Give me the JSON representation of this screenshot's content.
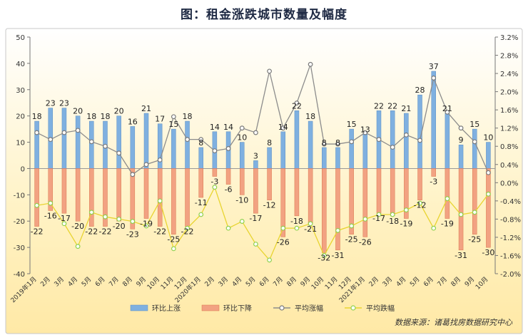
{
  "title": "图：租金涨跌城市数量及幅度",
  "source": "数据来源：诸葛找房数据研究中心",
  "colors": {
    "rise_bar": "#7fb0e0",
    "fall_bar": "#f2a282",
    "rise_line": "#8c8c8c",
    "fall_line": "#e8d430",
    "fall_marker": "#8fd14f"
  },
  "chart_data": {
    "type": "bar",
    "categories": [
      "2019年1月",
      "2月",
      "3月",
      "4月",
      "5月",
      "6月",
      "7月",
      "8月",
      "9月",
      "10月",
      "11月",
      "12月",
      "2020年1月",
      "2月",
      "3月",
      "4月",
      "5月",
      "6月",
      "7月",
      "8月",
      "9月",
      "10月",
      "11月",
      "12月",
      "2021年1月",
      "2月",
      "3月",
      "4月",
      "5月",
      "6月",
      "7月",
      "8月",
      "9月",
      "10月"
    ],
    "series": [
      {
        "name": "环比上涨",
        "axis": "left",
        "type": "bar",
        "values": [
          18,
          23,
          23,
          20,
          18,
          18,
          20,
          16,
          21,
          17,
          15,
          18,
          8,
          14,
          14,
          10,
          3,
          8,
          14,
          22,
          18,
          8,
          8,
          15,
          13,
          22,
          22,
          21,
          28,
          37,
          21,
          9,
          15,
          10
        ]
      },
      {
        "name": "环比下降",
        "axis": "left",
        "type": "bar",
        "values": [
          -22,
          -16,
          -17,
          -20,
          -22,
          -22,
          -20,
          -23,
          -19,
          -22,
          -25,
          -22,
          -11,
          -3,
          -6,
          -10,
          -17,
          -12,
          -26,
          -18,
          -21,
          -32,
          -31,
          -25,
          -26,
          -17,
          -18,
          -19,
          -12,
          -3,
          -19,
          -31,
          -25,
          -30
        ]
      },
      {
        "name": "平均涨幅",
        "axis": "right",
        "type": "line",
        "values": [
          1.1,
          0.95,
          1.1,
          1.15,
          0.9,
          0.8,
          0.65,
          0.18,
          0.4,
          0.5,
          1.45,
          0.95,
          0.95,
          0.7,
          0.75,
          1.2,
          1.1,
          2.45,
          1.2,
          1.75,
          2.6,
          0.85,
          0.85,
          0.9,
          1.1,
          0.95,
          0.78,
          1.05,
          0.93,
          2.3,
          1.55,
          1.2,
          0.9,
          0.22
        ]
      },
      {
        "name": "平均跌幅",
        "axis": "right",
        "type": "line",
        "values": [
          -0.5,
          -0.45,
          -0.9,
          -1.4,
          -0.65,
          -0.75,
          -0.8,
          -0.85,
          -0.95,
          -0.4,
          -1.45,
          -1.0,
          -0.7,
          -0.1,
          -1.0,
          -0.85,
          -1.35,
          -1.7,
          -1.0,
          -1.0,
          -0.9,
          -1.6,
          -1.05,
          -0.95,
          -0.8,
          -0.7,
          -0.7,
          -0.6,
          -0.45,
          -1.0,
          -0.35,
          -0.7,
          -0.65,
          -0.25
        ]
      }
    ],
    "data_labels_rise": [
      "18",
      "23",
      "23",
      "20",
      "18",
      "18",
      "20",
      "16",
      "21",
      "17",
      "15",
      "18",
      "8",
      "14",
      "14",
      "10",
      "3",
      "8",
      "14",
      "22",
      "18",
      "8",
      "8",
      "15",
      "13",
      "22",
      "22",
      "21",
      "28",
      "37",
      "21",
      "9",
      "15",
      "10"
    ],
    "data_labels_fall": [
      "-22",
      "-16",
      "-17",
      "-20",
      "-22",
      "-22",
      "-20",
      "-23",
      "-19",
      "-22",
      "-25",
      "-22",
      "-11",
      "-3",
      "-6",
      "-10",
      "-17",
      "-12",
      "-26",
      "-18",
      "-21",
      "-32",
      "-31",
      "-25",
      "-26",
      "-17",
      "-18",
      "-19",
      "-12",
      "-3",
      "-19",
      "-31",
      "-25",
      "-30"
    ],
    "yleft_ticks": [
      "50",
      "40",
      "30",
      "20",
      "10",
      "0",
      "-10",
      "-20",
      "-30",
      "-40"
    ],
    "yright_ticks": [
      "3.2%",
      "2.8%",
      "2.4%",
      "2.0%",
      "1.6%",
      "1.2%",
      "0.8%",
      "0.4%",
      "0.0%",
      "-0.4%",
      "-0.8%",
      "-1.2%",
      "-1.6%",
      "-2.0%"
    ],
    "ylim_left": [
      -40,
      50
    ],
    "ylim_right": [
      -2.0,
      3.2
    ],
    "grid": false,
    "legend_position": "bottom"
  }
}
